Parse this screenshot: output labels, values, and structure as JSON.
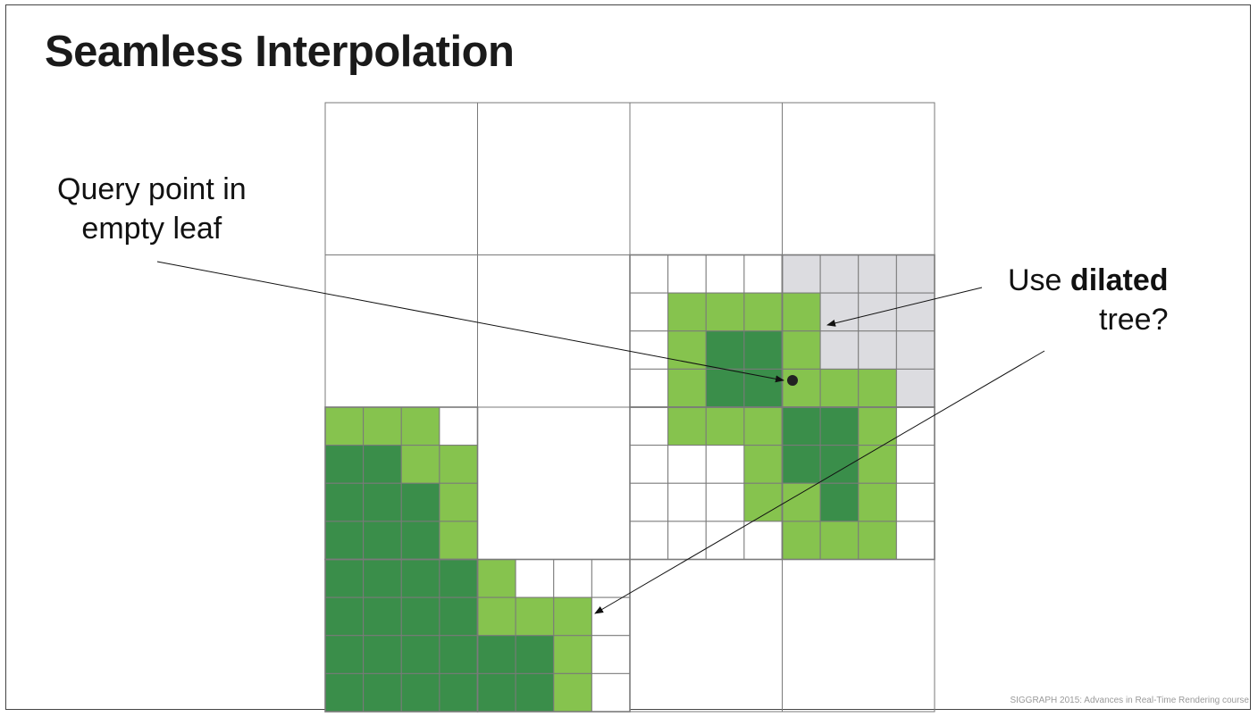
{
  "slide": {
    "title": "Seamless Interpolation",
    "footer": "SIGGRAPH 2015: Advances in Real-Time Rendering course"
  },
  "annotations": {
    "query_line1": "Query point in",
    "query_line2": "empty leaf",
    "dilated_prefix": "Use ",
    "dilated_bold": "dilated",
    "dilated_line2": "tree?"
  },
  "colors": {
    "light_green": "#86c34e",
    "dark_green": "#3a8e4a",
    "gray": "#dcdce0",
    "grid_line": "#7a7a7a",
    "empty": "#ffffff"
  }
}
